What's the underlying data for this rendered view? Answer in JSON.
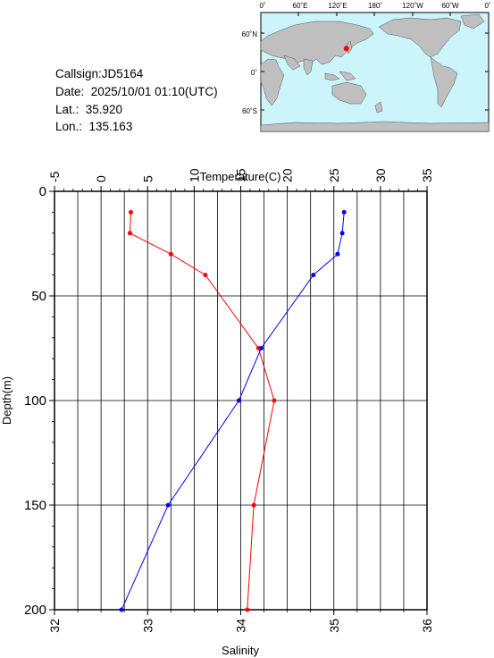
{
  "station": {
    "callsign": "Callsign:JD5164",
    "date": "Date:  2025/10/01 01:10(UTC)",
    "lat": "Lat.:  35.920",
    "lon": "Lon.:  135.163"
  },
  "map": {
    "lon_ticks": [
      "0˚",
      "60˚E",
      "120˚E",
      "180˚",
      "120˚W",
      "60˚W",
      "0˚"
    ],
    "lat_ticks": [
      "60˚N",
      "0˚",
      "60˚S"
    ],
    "ocean_color": "#ccf4fb",
    "land_color": "#bfbfbf",
    "marker_color": "#ff0000",
    "marker": {
      "lon": 135.163,
      "lat": 35.92
    }
  },
  "chart_data": {
    "type": "line",
    "xlabel_top": "Temperature(C)",
    "xlabel_bottom": "Salinity",
    "ylabel": "Depth(m)",
    "temperature_range": [
      -5,
      35
    ],
    "temperature_ticks": [
      -5,
      0,
      5,
      10,
      15,
      20,
      25,
      30,
      35
    ],
    "salinity_range": [
      32,
      36
    ],
    "salinity_ticks": [
      32,
      33,
      34,
      35,
      36
    ],
    "depth_range": [
      0,
      200
    ],
    "depth_ticks": [
      0,
      50,
      100,
      150,
      200
    ],
    "y_inverted": true,
    "grid": true,
    "series": [
      {
        "color": "#ff0000",
        "axis": "salinity",
        "points": [
          {
            "depth": 10,
            "value": 32.82
          },
          {
            "depth": 20,
            "value": 32.81
          },
          {
            "depth": 30,
            "value": 33.25
          },
          {
            "depth": 40,
            "value": 33.62
          },
          {
            "depth": 75,
            "value": 34.19
          },
          {
            "depth": 100,
            "value": 34.36
          },
          {
            "depth": 150,
            "value": 34.14
          },
          {
            "depth": 200,
            "value": 34.07
          }
        ]
      },
      {
        "color": "#0000ff",
        "axis": "temperature",
        "points": [
          {
            "depth": 10,
            "value": 26.1
          },
          {
            "depth": 20,
            "value": 25.9
          },
          {
            "depth": 30,
            "value": 25.4
          },
          {
            "depth": 40,
            "value": 22.8
          },
          {
            "depth": 75,
            "value": 17.2
          },
          {
            "depth": 100,
            "value": 14.8
          },
          {
            "depth": 150,
            "value": 7.2
          },
          {
            "depth": 200,
            "value": 2.2
          }
        ]
      }
    ]
  }
}
